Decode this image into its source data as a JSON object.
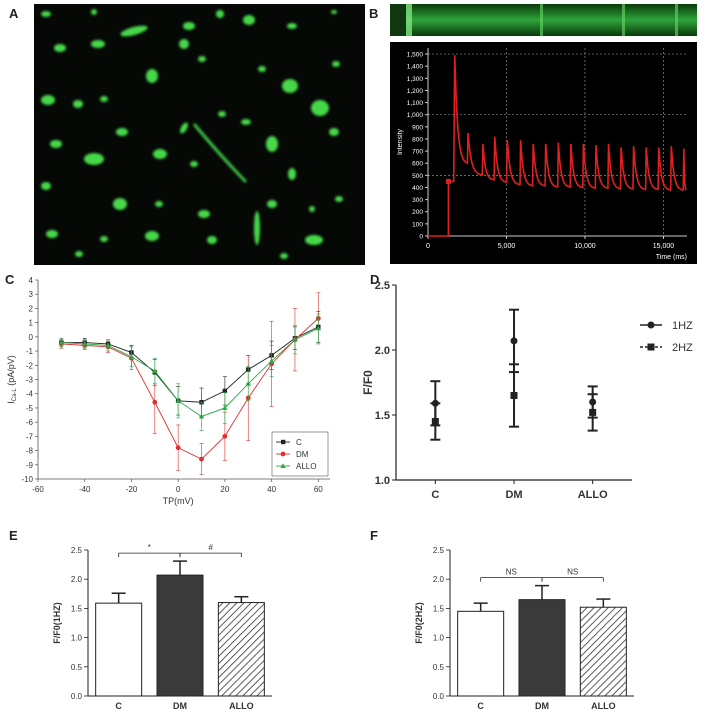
{
  "panel_labels": {
    "A": "A",
    "B": "B",
    "C": "C",
    "D": "D",
    "E": "E",
    "F": "F"
  },
  "chart_data": [
    {
      "panel": "B",
      "type": "line",
      "xlabel": "Time (ms)",
      "ylabel": "Intensity",
      "xlim": [
        0,
        16500
      ],
      "ylim": [
        0,
        1550
      ],
      "x_ticks": [
        0,
        5000,
        10000,
        15000
      ],
      "x_tick_labels": [
        "0",
        "5,000",
        "10,000",
        "15,000"
      ],
      "y_ticks": [
        0,
        100,
        200,
        300,
        400,
        500,
        600,
        700,
        800,
        900,
        1000,
        1100,
        1200,
        1300,
        1400,
        1500
      ],
      "y_tick_labels": [
        "0",
        "100",
        "200",
        "300",
        "400",
        "500",
        "600",
        "700",
        "800",
        "900",
        "1,000",
        "1,100",
        "1,200",
        "1,300",
        "1,400",
        "1,500"
      ],
      "grid": true,
      "series_color": "#e02020",
      "baseline_start": 0,
      "rise_time": 1300,
      "initial_level": 450,
      "spike_times": [
        1700,
        2550,
        3500,
        4250,
        5050,
        5900,
        6700,
        7500,
        8300,
        9100,
        9900,
        10700,
        11500,
        12300,
        13100,
        13900,
        14700,
        15500,
        16300
      ],
      "spike_peaks": [
        1490,
        850,
        760,
        820,
        790,
        790,
        760,
        760,
        770,
        760,
        760,
        750,
        760,
        730,
        740,
        730,
        730,
        740,
        720
      ],
      "trough_levels": [
        590,
        500,
        460,
        440,
        420,
        410,
        410,
        400,
        400,
        395,
        390,
        390,
        385,
        385,
        380,
        380,
        375,
        375,
        375
      ]
    },
    {
      "panel": "C",
      "type": "line",
      "xlabel": "TP(mV)",
      "ylabel": "ICa-L (pA/pV)",
      "ylabel_main": "I",
      "ylabel_sub": "Ca-L",
      "ylabel_rest": "(pA/pV)",
      "xlim": [
        -60,
        65
      ],
      "ylim": [
        -10,
        4
      ],
      "x_ticks": [
        -60,
        -40,
        -20,
        0,
        20,
        40,
        60
      ],
      "y_ticks": [
        4,
        3,
        2,
        1,
        0,
        -1,
        -2,
        -3,
        -4,
        -5,
        -6,
        -7,
        -8,
        -9,
        -10
      ],
      "x": [
        -50,
        -40,
        -30,
        -20,
        -10,
        0,
        10,
        20,
        30,
        40,
        50,
        60
      ],
      "series": [
        {
          "name": "C",
          "color": "#222222",
          "marker": "square",
          "values": [
            -0.4,
            -0.4,
            -0.5,
            -1.1,
            -2.5,
            -4.5,
            -4.6,
            -3.8,
            -2.3,
            -1.3,
            -0.1,
            0.7
          ],
          "errors": [
            0.3,
            0.3,
            0.3,
            0.5,
            0.9,
            1.0,
            1.0,
            1.0,
            1.0,
            1.0,
            0.8,
            1.1
          ]
        },
        {
          "name": "DM",
          "color": "#e03030",
          "marker": "circle",
          "values": [
            -0.5,
            -0.6,
            -0.7,
            -1.5,
            -4.6,
            -7.8,
            -8.6,
            -7.0,
            -4.3,
            -1.9,
            -0.2,
            1.3
          ],
          "errors": [
            0.3,
            0.3,
            0.4,
            0.8,
            2.2,
            1.6,
            1.1,
            1.7,
            3.0,
            3.0,
            2.2,
            1.8
          ]
        },
        {
          "name": "ALLO",
          "color": "#2aa845",
          "marker": "triangle",
          "values": [
            -0.4,
            -0.5,
            -0.6,
            -1.4,
            -2.4,
            -4.5,
            -5.6,
            -5.0,
            -3.3,
            -1.7,
            -0.2,
            0.6
          ],
          "errors": [
            0.3,
            0.3,
            0.4,
            0.7,
            0.9,
            1.2,
            1.0,
            1.1,
            1.2,
            1.1,
            1.0,
            1.0
          ]
        }
      ],
      "legend_position": "bottom-right"
    },
    {
      "panel": "D",
      "type": "scatter",
      "ylabel": "F/F0",
      "categories": [
        "C",
        "DM",
        "ALLO"
      ],
      "ylim": [
        1.0,
        2.5
      ],
      "y_ticks": [
        1.0,
        1.5,
        2.0,
        2.5
      ],
      "y_tick_labels": [
        "1.0",
        "1.5",
        "2.0",
        "2.5"
      ],
      "series": [
        {
          "name": "1HZ",
          "marker": "circle",
          "values": [
            1.59,
            2.07,
            1.6
          ],
          "errors": [
            0.17,
            0.24,
            0.12
          ]
        },
        {
          "name": "2HZ",
          "marker": "square",
          "values": [
            1.45,
            1.65,
            1.52
          ],
          "errors": [
            0.14,
            0.24,
            0.14
          ]
        }
      ],
      "legend_position": "right"
    },
    {
      "panel": "E",
      "type": "bar",
      "ylabel": "F/F0(1HZ)",
      "categories": [
        "C",
        "DM",
        "ALLO"
      ],
      "values": [
        1.59,
        2.07,
        1.6
      ],
      "errors": [
        0.17,
        0.24,
        0.1
      ],
      "ylim": [
        0,
        2.5
      ],
      "y_ticks": [
        0,
        0.5,
        1.0,
        1.5,
        2.0,
        2.5
      ],
      "y_tick_labels": [
        "0.0",
        "0.5",
        "1.0",
        "1.5",
        "2.0",
        "2.5"
      ],
      "fills": [
        "white",
        "dark",
        "hatch"
      ],
      "significance": [
        {
          "from": 0,
          "to": 1,
          "label": "*"
        },
        {
          "from": 1,
          "to": 2,
          "label": "#"
        }
      ]
    },
    {
      "panel": "F",
      "type": "bar",
      "ylabel": "F/F0(2HZ)",
      "categories": [
        "C",
        "DM",
        "ALLO"
      ],
      "values": [
        1.45,
        1.65,
        1.52
      ],
      "errors": [
        0.14,
        0.24,
        0.14
      ],
      "ylim": [
        0,
        2.5
      ],
      "y_ticks": [
        0,
        0.5,
        1.0,
        1.5,
        2.0,
        2.5
      ],
      "y_tick_labels": [
        "0.0",
        "0.5",
        "1.0",
        "1.5",
        "2.0",
        "2.5"
      ],
      "fills": [
        "white",
        "dark",
        "hatch"
      ],
      "significance": [
        {
          "from": 0,
          "to": 1,
          "label": "NS"
        },
        {
          "from": 1,
          "to": 2,
          "label": "NS"
        }
      ]
    }
  ]
}
